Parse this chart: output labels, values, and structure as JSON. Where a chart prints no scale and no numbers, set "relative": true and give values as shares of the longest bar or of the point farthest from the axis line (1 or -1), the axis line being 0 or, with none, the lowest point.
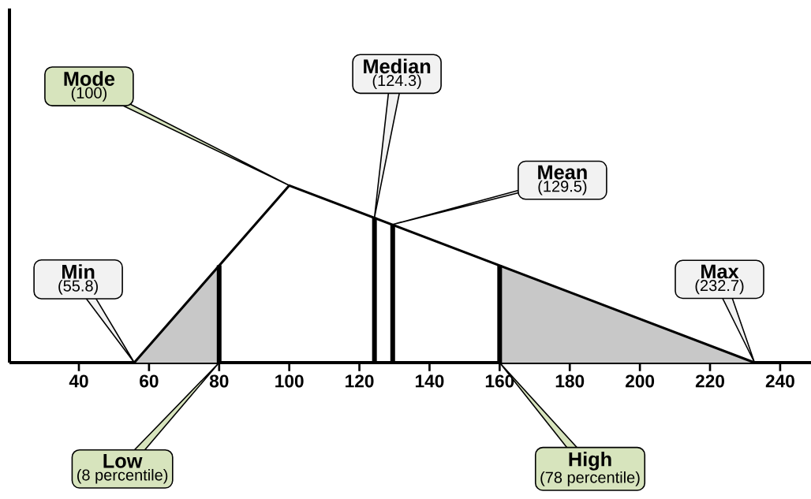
{
  "chart_data": {
    "type": "line",
    "relative": true,
    "tick_labels": "x",
    "xlim": [
      20.2,
      248.8
    ],
    "xticks": [
      40,
      60,
      80,
      100,
      120,
      140,
      160,
      180,
      200,
      220,
      240
    ],
    "series": [
      {
        "type": "area",
        "x": [
          55.8,
          80
        ],
        "values": [
          0,
          0.55
        ],
        "color": "#c8c8c8"
      },
      {
        "type": "area",
        "x": [
          160,
          232.7
        ],
        "values": [
          0.55,
          0
        ],
        "color": "#c8c8c8"
      },
      {
        "x": [
          55.8,
          100,
          232.7
        ],
        "values": [
          0,
          1,
          0
        ],
        "color": "#000000"
      },
      {
        "type": "bar",
        "x": [
          80
        ],
        "values": [
          0.55
        ],
        "color": "#000000"
      },
      {
        "type": "bar",
        "x": [
          124.3
        ],
        "values": [
          0.82
        ],
        "color": "#000000"
      },
      {
        "type": "bar",
        "x": [
          129.5
        ],
        "values": [
          0.78
        ],
        "color": "#000000"
      },
      {
        "type": "bar",
        "x": [
          160
        ],
        "values": [
          0.55
        ],
        "color": "#000000"
      }
    ],
    "annotations": [
      {
        "text": "Mode",
        "x": 100,
        "y": 1
      },
      "(100)",
      {
        "text": "Median",
        "x": 124.3,
        "y": 0.82
      },
      "(124.3)",
      {
        "text": "Mean",
        "x": 129.5,
        "y": 0.78
      },
      "(129.5)",
      "Min",
      "(55.8)",
      {
        "text": "Max",
        "x": 232.7,
        "y": 0
      },
      "(232.7)",
      "Low",
      "(8 percentile)",
      "High",
      "(78 percentile)"
    ]
  }
}
